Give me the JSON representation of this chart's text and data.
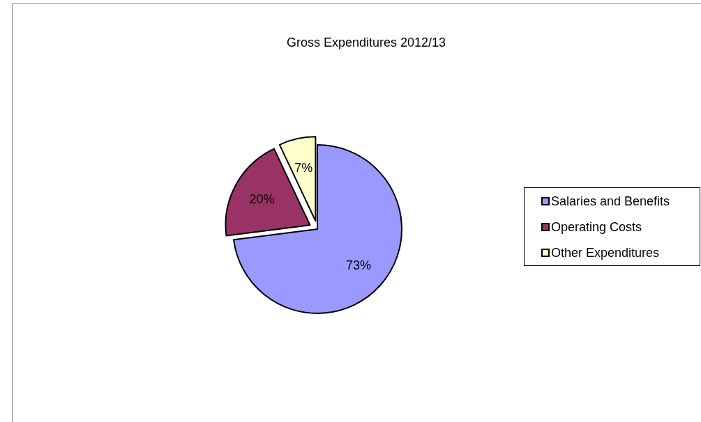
{
  "chart_data": {
    "type": "pie",
    "title": "Gross Expenditures 2012/13",
    "categories": [
      "Salaries and Benefits",
      "Operating Costs",
      "Other Expenditures"
    ],
    "values": [
      73,
      20,
      7
    ],
    "colors": [
      "#9999ff",
      "#993366",
      "#ffffcc"
    ],
    "value_labels": [
      "73%",
      "20%",
      "7%"
    ],
    "legend": "right"
  }
}
